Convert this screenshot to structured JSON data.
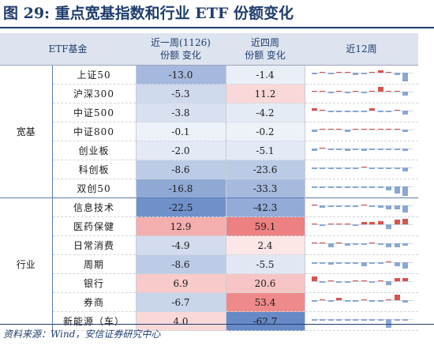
{
  "title": "图 29:  重点宽基指数和行业 ETF 份额变化",
  "header": {
    "col1": "ETF基金",
    "col2a": "近一周(1126)",
    "col2b": "份额 变化",
    "col3a": "近四周",
    "col3b": "份额 变化",
    "col4": "近12周"
  },
  "groups": [
    {
      "label": "宽基",
      "rows": [
        {
          "name": "上证50",
          "w1": "-13.0",
          "w4": "-1.4",
          "spark": [
            -1,
            1,
            -1,
            1,
            0,
            -2,
            -1,
            1,
            2,
            1,
            -2,
            -7
          ]
        },
        {
          "name": "沪深300",
          "w1": "-5.3",
          "w4": "11.2",
          "spark": [
            1,
            1,
            -1,
            0,
            -1,
            1,
            -1,
            1,
            4,
            1,
            1,
            -3
          ]
        },
        {
          "name": "中证500",
          "w1": "-3.8",
          "w4": "-4.2",
          "spark": [
            2,
            1,
            -1,
            -1,
            -1,
            -1,
            -1,
            2,
            -1,
            -1,
            0,
            -3
          ]
        },
        {
          "name": "中证800",
          "w1": "-0.1",
          "w4": "-0.2",
          "spark": [
            -2,
            0,
            0,
            0,
            -2,
            0,
            0,
            0,
            0,
            0,
            0,
            -2
          ]
        },
        {
          "name": "创业板",
          "w1": "-2.0",
          "w4": "-5.1",
          "spark": [
            -2,
            1,
            -1,
            -1,
            -2,
            -1,
            -2,
            -1,
            -1,
            -1,
            -1,
            -2
          ]
        },
        {
          "name": "科创板",
          "w1": "-8.6",
          "w4": "-23.6",
          "spark": [
            -1,
            -1,
            -1,
            -1,
            -1,
            -1,
            1,
            -1,
            -1,
            -1,
            -1,
            -3
          ]
        },
        {
          "name": "双创50",
          "w1": "-16.8",
          "w4": "-33.3",
          "spark": [
            -1,
            -1,
            -1,
            -1,
            -1,
            -1,
            -1,
            -1,
            -1,
            -3,
            -6,
            -8
          ]
        }
      ]
    },
    {
      "label": "行业",
      "rows": [
        {
          "name": "信息技术",
          "w1": "-22.5",
          "w4": "-42.3",
          "spark": [
            1,
            -2,
            -1,
            -1,
            -1,
            -1,
            1,
            -1,
            -2,
            -3,
            -3,
            -6
          ]
        },
        {
          "name": "医药保健",
          "w1": "12.9",
          "w4": "59.1",
          "spark": [
            0,
            -1,
            0,
            1,
            0,
            -1,
            2,
            2,
            3,
            -4,
            4,
            5
          ]
        },
        {
          "name": "日常消费",
          "w1": "-4.9",
          "w4": "2.4",
          "spark": [
            1,
            1,
            -3,
            0,
            -2,
            -1,
            -1,
            1,
            -1,
            -3,
            -3,
            -2
          ]
        },
        {
          "name": "周期",
          "w1": "-8.6",
          "w4": "-5.5",
          "spark": [
            -1,
            -1,
            -2,
            -1,
            -1,
            -1,
            -3,
            -1,
            -1,
            1,
            -3,
            -5
          ]
        },
        {
          "name": "银行",
          "w1": "6.9",
          "w4": "20.6",
          "spark": [
            4,
            -1,
            1,
            -1,
            -1,
            1,
            0,
            -1,
            1,
            -3,
            3,
            3
          ]
        },
        {
          "name": "券商",
          "w1": "-6.7",
          "w4": "53.4",
          "spark": [
            -1,
            1,
            -1,
            2,
            -1,
            -1,
            1,
            -1,
            -1,
            1,
            5,
            -2
          ]
        },
        {
          "name": "新能源（车）",
          "w1": "4.0",
          "w4": "-62.7",
          "spark": [
            -1,
            -1,
            -1,
            -1,
            -1,
            -1,
            -1,
            -1,
            -1,
            -7,
            -1,
            -1
          ]
        }
      ]
    }
  ],
  "footer": "资料来源：Wind，安信证券研究中心",
  "colors": {
    "pos": "#d9534f",
    "neg": "#8aa8d2"
  }
}
